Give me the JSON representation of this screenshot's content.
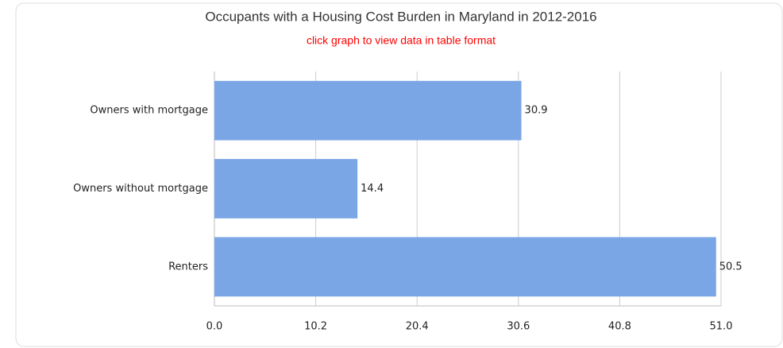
{
  "chart_data": {
    "type": "hbar",
    "title": "Occupants with a Housing Cost Burden in Maryland in 2012-2016",
    "subtitle": "click graph to view data in table format",
    "categories": [
      "Owners with mortgage",
      "Owners without mortgage",
      "Renters"
    ],
    "values": [
      30.9,
      14.4,
      50.5
    ],
    "color": "#7aa6e6",
    "xlim": [
      0,
      51
    ],
    "xticks": [
      {
        "value": 0,
        "label": "0.0"
      },
      10.2,
      20.4,
      30.6,
      40.8,
      {
        "value": 51,
        "label": "51.0"
      }
    ],
    "grid": true
  }
}
